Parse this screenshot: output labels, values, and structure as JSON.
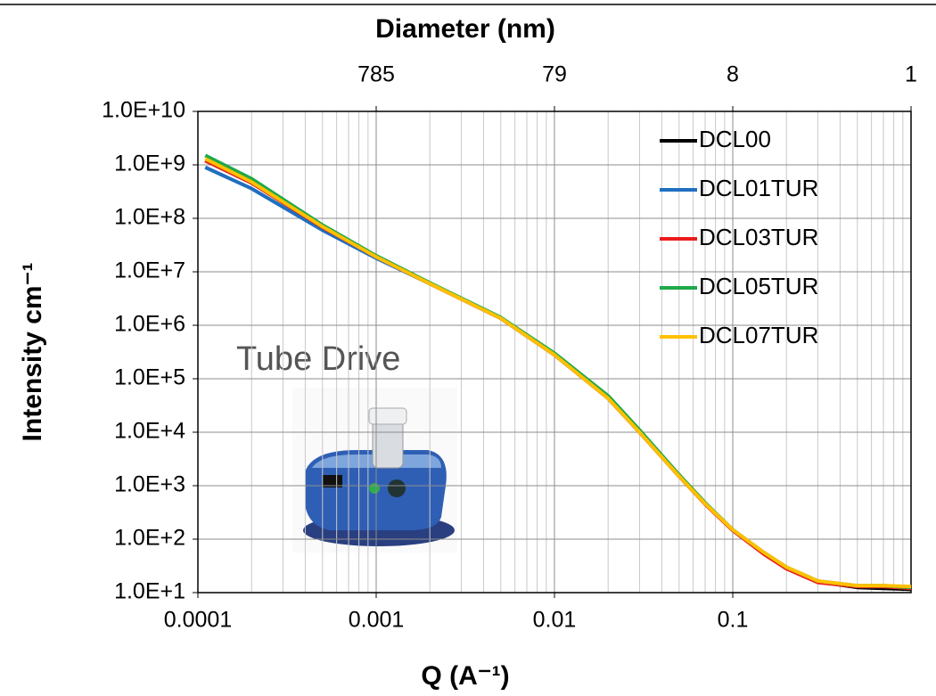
{
  "chart_data": {
    "type": "line",
    "x_title": "Q (A⁻¹)",
    "y_title": "Intensity cm⁻¹",
    "x2_title": "Diameter (nm)",
    "annotation": "Tube Drive",
    "log_x": true,
    "log_y": true,
    "grid": true,
    "minor_grid_x": true,
    "legend_position": "upper-right",
    "xlim": [
      0.0001,
      1
    ],
    "ylim": [
      10,
      10000000000
    ],
    "xticks": [
      0.0001,
      0.001,
      0.01,
      0.1
    ],
    "x2ticks": [
      {
        "value": 0.001,
        "label": "785"
      },
      {
        "value": 0.01,
        "label": "79"
      },
      {
        "value": 0.1,
        "label": "8"
      },
      {
        "value": 1,
        "label": "1"
      }
    ],
    "yticks": [
      {
        "value": 10,
        "label": "1.0E+1"
      },
      {
        "value": 100,
        "label": "1.0E+2"
      },
      {
        "value": 1000,
        "label": "1.0E+3"
      },
      {
        "value": 10000,
        "label": "1.0E+4"
      },
      {
        "value": 100000,
        "label": "1.0E+5"
      },
      {
        "value": 1000000,
        "label": "1.0E+6"
      },
      {
        "value": 10000000,
        "label": "1.0E+7"
      },
      {
        "value": 100000000,
        "label": "1.0E+8"
      },
      {
        "value": 1000000000,
        "label": "1.0E+9"
      },
      {
        "value": 10000000000,
        "label": "1.0E+10"
      }
    ],
    "x": [
      0.00011,
      0.0002,
      0.0005,
      0.001,
      0.002,
      0.005,
      0.01,
      0.02,
      0.03,
      0.05,
      0.07,
      0.1,
      0.15,
      0.2,
      0.3,
      0.5,
      0.7,
      1.0
    ],
    "series": [
      {
        "name": "DCL00",
        "color": "#000000",
        "values": [
          1200000000,
          460000000,
          68000000,
          19000000,
          6000000,
          1350000,
          280000,
          43000,
          10000,
          1500,
          460,
          150,
          55,
          29,
          16,
          12.5,
          12,
          11.5
        ]
      },
      {
        "name": "DCL01TUR",
        "color": "#1f6fc0",
        "values": [
          900000000,
          360000000,
          60000000,
          18000000,
          6000000,
          1350000,
          280000,
          43000,
          10000,
          1500,
          460,
          150,
          55,
          29,
          16,
          13,
          13,
          12.5
        ]
      },
      {
        "name": "DCL03TUR",
        "color": "#ee1c1c",
        "values": [
          1200000000,
          460000000,
          68000000,
          19000000,
          6000000,
          1350000,
          280000,
          43000,
          10000,
          1500,
          450,
          145,
          52,
          28,
          15.5,
          13,
          13,
          12
        ]
      },
      {
        "name": "DCL05TUR",
        "color": "#1fa84a",
        "values": [
          1500000000,
          550000000,
          75000000,
          20000000,
          6200000,
          1400000,
          300000,
          48000,
          11000,
          1600,
          480,
          150,
          56,
          30,
          16.5,
          13.5,
          13.5,
          12.5
        ]
      },
      {
        "name": "DCL07TUR",
        "color": "#ffc000",
        "values": [
          1300000000,
          480000000,
          70000000,
          19000000,
          6000000,
          1350000,
          280000,
          43000,
          10000,
          1500,
          460,
          150,
          56,
          30,
          16.5,
          13.5,
          13.5,
          13
        ]
      }
    ]
  }
}
